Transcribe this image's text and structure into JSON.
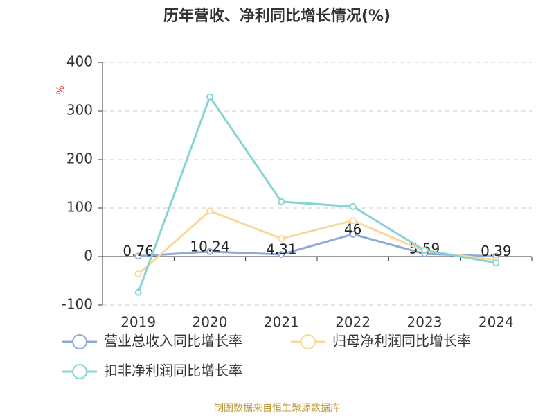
{
  "chart_data": {
    "type": "line",
    "title": "历年营收、净利同比增长情况(%)",
    "y_label": "%",
    "categories": [
      "2019",
      "2020",
      "2021",
      "2022",
      "2023",
      "2024"
    ],
    "series": [
      {
        "name": "营业总收入同比增长率",
        "color": "#8eaad8",
        "values": [
          0.76,
          10.24,
          4.31,
          46,
          5.59,
          0.39
        ],
        "show_labels": true
      },
      {
        "name": "归母净利润同比增长率",
        "color": "#f9d99a",
        "values": [
          -36,
          94,
          37,
          74,
          11,
          -7
        ],
        "show_labels": false
      },
      {
        "name": "扣非净利润同比增长率",
        "color": "#88d4d4",
        "values": [
          -74,
          329,
          113,
          103,
          13,
          -13
        ],
        "show_labels": false
      }
    ],
    "ylim": [
      -100,
      400
    ],
    "yticks": [
      -100,
      0,
      100,
      200,
      300,
      400
    ],
    "grid": true,
    "source": "制图数据来自恒生聚源数据库"
  }
}
